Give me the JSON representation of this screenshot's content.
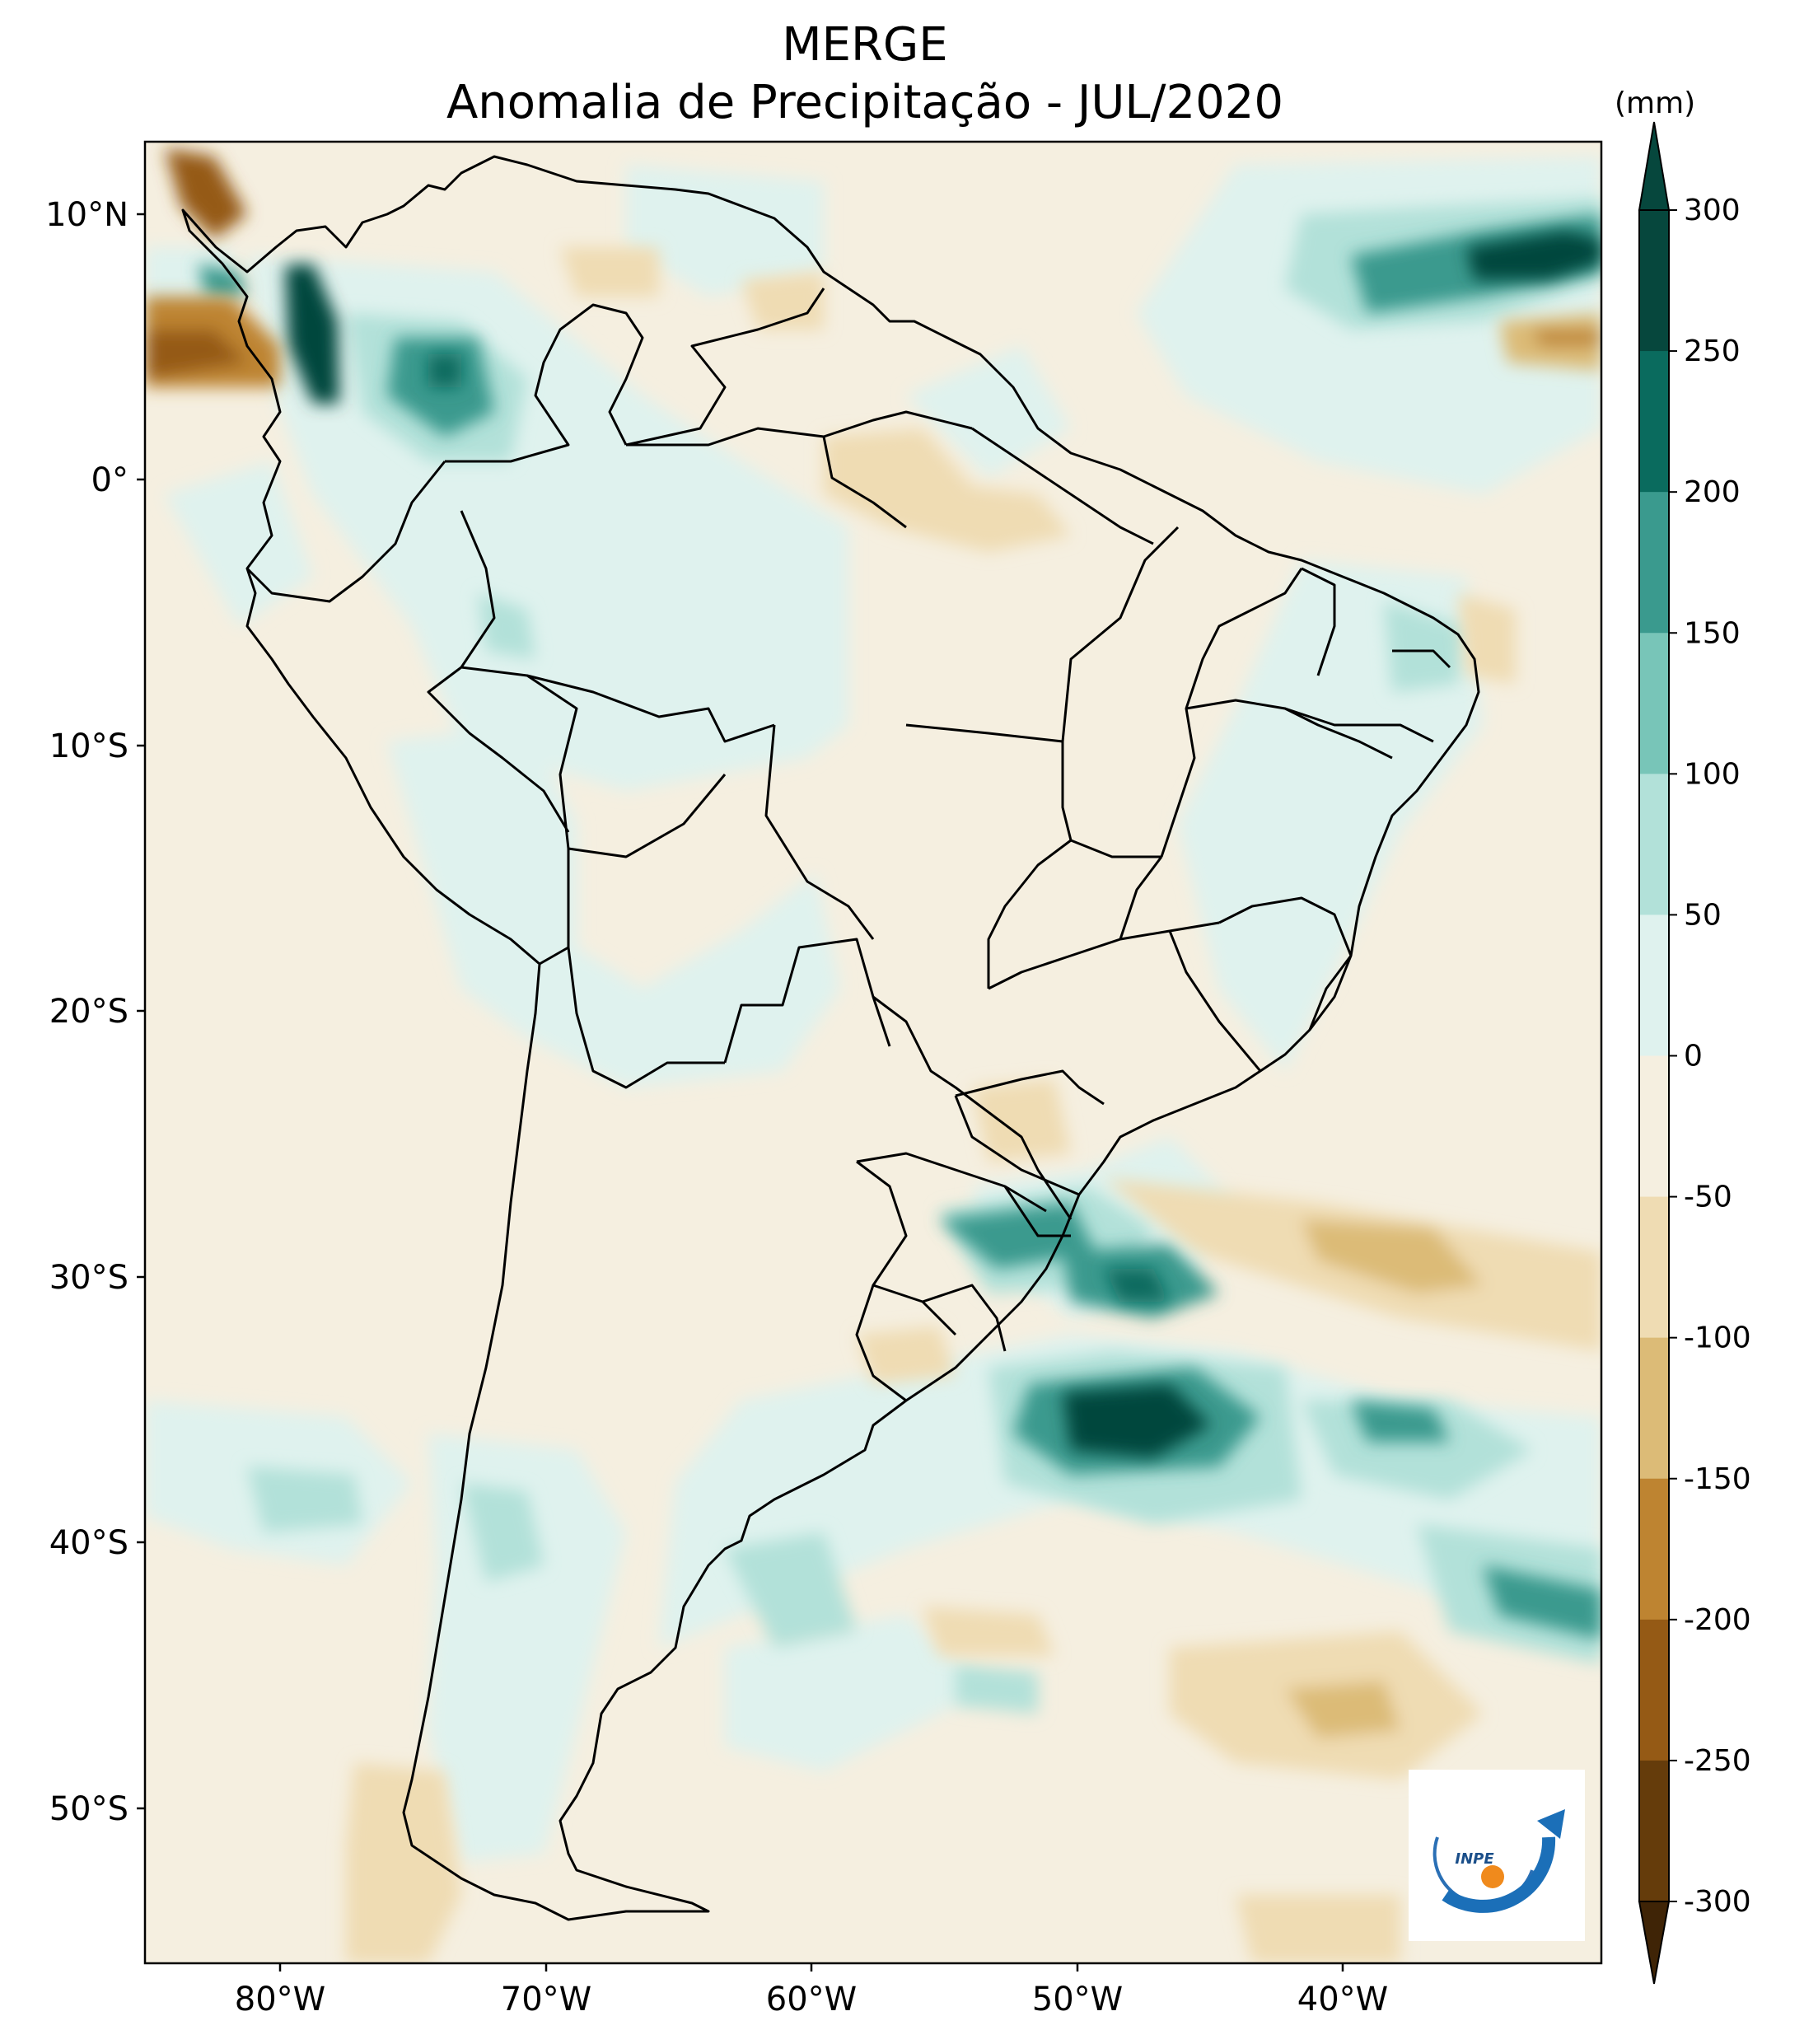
{
  "title": "MERGE",
  "subtitle": "Anomalia de Precipitação - JUL/2020",
  "colorbar": {
    "unit": "(mm)",
    "ticks": [
      "300",
      "250",
      "200",
      "150",
      "100",
      "50",
      "0",
      "-50",
      "-100",
      "-150",
      "-200",
      "-250",
      "-300"
    ],
    "colors": [
      "#06473d",
      "#0a6b5e",
      "#3a9a8e",
      "#78c5b8",
      "#b2e1d9",
      "#dff2ee",
      "#f5efe0",
      "#efdcb3",
      "#dcbb77",
      "#be8431",
      "#955a15",
      "#653c0b"
    ],
    "extend": "both"
  },
  "axes": {
    "lat_ticks": [
      "10°N",
      "0°",
      "10°S",
      "20°S",
      "30°S",
      "40°S",
      "50°S"
    ],
    "lon_ticks": [
      "80°W",
      "70°W",
      "60°W",
      "50°W",
      "40°W"
    ]
  },
  "logo": {
    "text": "INPE"
  }
}
